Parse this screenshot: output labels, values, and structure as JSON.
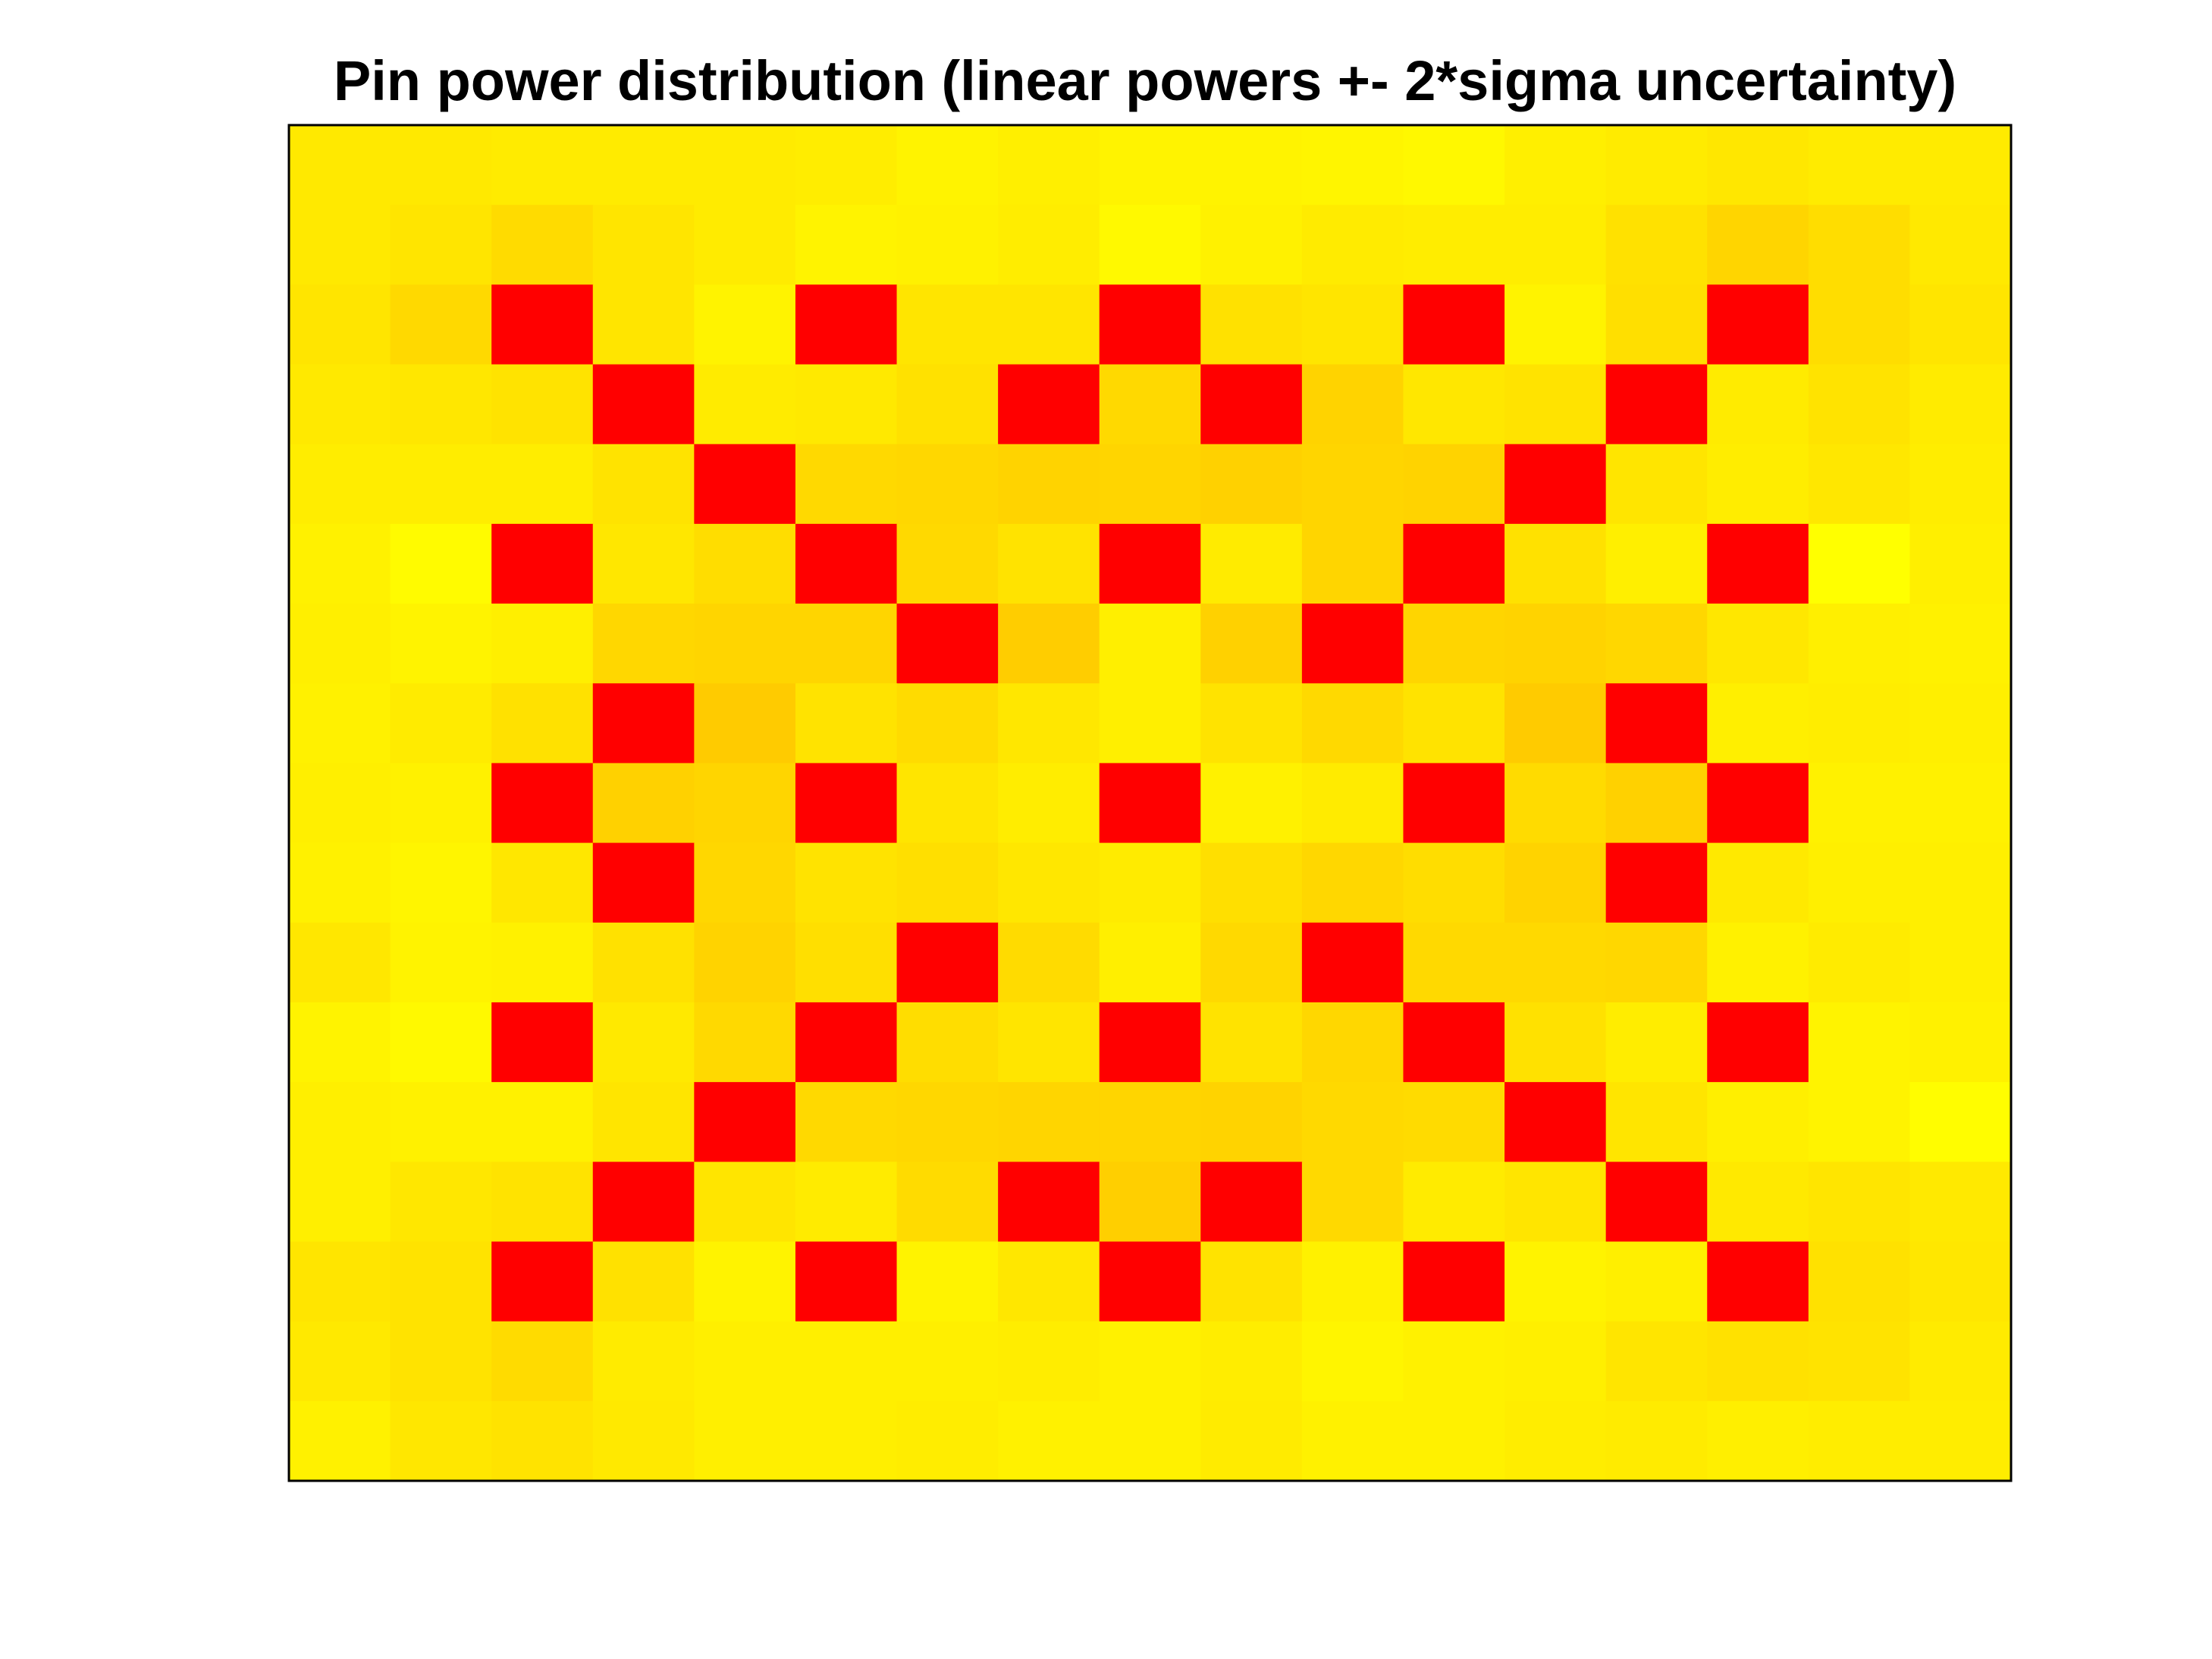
{
  "chart_data": {
    "type": "heatmap",
    "title": "Pin power distribution (linear powers +- 2*sigma uncertainty)",
    "xlabel": "",
    "ylabel": "",
    "n_rows": 17,
    "n_cols": 17,
    "grid": false,
    "legend": "none",
    "colormap": {
      "low": "#ff0000",
      "mid": "#ffc800",
      "high": "#ffff00"
    },
    "border_color": "#000000",
    "values": [
      [
        0.78,
        0.78,
        0.8,
        0.8,
        0.8,
        0.82,
        0.88,
        0.84,
        0.88,
        0.88,
        0.9,
        0.93,
        0.84,
        0.8,
        0.76,
        0.8,
        0.8
      ],
      [
        0.78,
        0.74,
        0.64,
        0.74,
        0.8,
        0.88,
        0.86,
        0.82,
        0.94,
        0.86,
        0.8,
        0.82,
        0.82,
        0.7,
        0.58,
        0.66,
        0.78
      ],
      [
        0.74,
        0.62,
        0.0,
        0.74,
        0.88,
        0.0,
        0.74,
        0.74,
        0.0,
        0.7,
        0.74,
        0.0,
        0.88,
        0.68,
        0.0,
        0.66,
        0.74
      ],
      [
        0.78,
        0.76,
        0.72,
        0.0,
        0.8,
        0.78,
        0.7,
        0.0,
        0.62,
        0.0,
        0.56,
        0.76,
        0.72,
        0.0,
        0.8,
        0.72,
        0.8
      ],
      [
        0.82,
        0.82,
        0.82,
        0.72,
        0.0,
        0.62,
        0.6,
        0.56,
        0.58,
        0.54,
        0.58,
        0.56,
        0.0,
        0.74,
        0.82,
        0.76,
        0.82
      ],
      [
        0.86,
        0.96,
        0.0,
        0.76,
        0.66,
        0.0,
        0.62,
        0.72,
        0.0,
        0.8,
        0.58,
        0.0,
        0.7,
        0.84,
        0.0,
        1.0,
        0.84
      ],
      [
        0.84,
        0.88,
        0.84,
        0.6,
        0.58,
        0.58,
        0.0,
        0.5,
        0.84,
        0.54,
        0.0,
        0.58,
        0.56,
        0.6,
        0.76,
        0.84,
        0.86
      ],
      [
        0.86,
        0.8,
        0.7,
        0.0,
        0.48,
        0.72,
        0.64,
        0.76,
        0.84,
        0.72,
        0.62,
        0.72,
        0.48,
        0.0,
        0.84,
        0.82,
        0.84
      ],
      [
        0.84,
        0.86,
        0.0,
        0.54,
        0.58,
        0.0,
        0.74,
        0.82,
        0.0,
        0.86,
        0.8,
        0.0,
        0.64,
        0.54,
        0.0,
        0.86,
        0.86
      ],
      [
        0.86,
        0.9,
        0.76,
        0.0,
        0.6,
        0.72,
        0.68,
        0.76,
        0.8,
        0.68,
        0.6,
        0.66,
        0.56,
        0.0,
        0.78,
        0.84,
        0.84
      ],
      [
        0.76,
        0.88,
        0.86,
        0.7,
        0.56,
        0.68,
        0.0,
        0.64,
        0.84,
        0.62,
        0.0,
        0.62,
        0.62,
        0.6,
        0.86,
        0.8,
        0.84
      ],
      [
        0.88,
        0.94,
        0.0,
        0.78,
        0.62,
        0.0,
        0.66,
        0.74,
        0.0,
        0.72,
        0.6,
        0.0,
        0.7,
        0.82,
        0.0,
        0.88,
        0.86
      ],
      [
        0.84,
        0.86,
        0.86,
        0.74,
        0.0,
        0.62,
        0.6,
        0.58,
        0.58,
        0.56,
        0.62,
        0.64,
        0.0,
        0.74,
        0.84,
        0.88,
        0.98
      ],
      [
        0.84,
        0.76,
        0.72,
        0.0,
        0.74,
        0.8,
        0.64,
        0.0,
        0.52,
        0.0,
        0.62,
        0.8,
        0.74,
        0.0,
        0.78,
        0.74,
        0.78
      ],
      [
        0.74,
        0.72,
        0.0,
        0.7,
        0.88,
        0.0,
        0.88,
        0.76,
        0.0,
        0.72,
        0.86,
        0.0,
        0.88,
        0.84,
        0.0,
        0.7,
        0.76
      ],
      [
        0.78,
        0.72,
        0.64,
        0.8,
        0.84,
        0.84,
        0.84,
        0.82,
        0.86,
        0.82,
        0.9,
        0.86,
        0.84,
        0.74,
        0.7,
        0.72,
        0.8
      ],
      [
        0.86,
        0.76,
        0.72,
        0.78,
        0.84,
        0.84,
        0.82,
        0.86,
        0.86,
        0.8,
        0.86,
        0.86,
        0.82,
        0.8,
        0.84,
        0.82,
        0.82
      ]
    ]
  }
}
